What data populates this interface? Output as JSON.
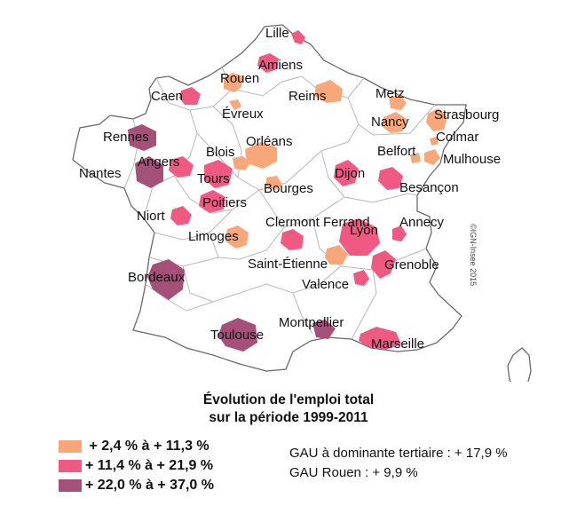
{
  "map": {
    "credit": "©IGN-Insee 2015",
    "cities": [
      {
        "name": "Lille",
        "class": 2
      },
      {
        "name": "Amiens",
        "class": 2
      },
      {
        "name": "Rouen",
        "class": 1
      },
      {
        "name": "Caen",
        "class": 2
      },
      {
        "name": "Évreux",
        "class": 1
      },
      {
        "name": "Reims",
        "class": 1
      },
      {
        "name": "Metz",
        "class": 1
      },
      {
        "name": "Nancy",
        "class": 1
      },
      {
        "name": "Strasbourg",
        "class": 1
      },
      {
        "name": "Colmar",
        "class": 1
      },
      {
        "name": "Mulhouse",
        "class": 1
      },
      {
        "name": "Belfort",
        "class": 1
      },
      {
        "name": "Rennes",
        "class": 3
      },
      {
        "name": "Nantes",
        "class": 3
      },
      {
        "name": "Angers",
        "class": 2
      },
      {
        "name": "Blois",
        "class": 1
      },
      {
        "name": "Orléans",
        "class": 1
      },
      {
        "name": "Tours",
        "class": 2
      },
      {
        "name": "Dijon",
        "class": 2
      },
      {
        "name": "Besançon",
        "class": 2
      },
      {
        "name": "Bourges",
        "class": 1
      },
      {
        "name": "Poitiers",
        "class": 2
      },
      {
        "name": "Niort",
        "class": 2
      },
      {
        "name": "Limoges",
        "class": 1
      },
      {
        "name": "Clermont Ferrand",
        "class": 2
      },
      {
        "name": "Lyon",
        "class": 2
      },
      {
        "name": "Annecy",
        "class": 2
      },
      {
        "name": "Saint-Étienne",
        "class": 1
      },
      {
        "name": "Grenoble",
        "class": 2
      },
      {
        "name": "Valence",
        "class": 2
      },
      {
        "name": "Bordeaux",
        "class": 3
      },
      {
        "name": "Toulouse",
        "class": 3
      },
      {
        "name": "Montpellier",
        "class": 3
      },
      {
        "name": "Marseille",
        "class": 2
      }
    ]
  },
  "title": {
    "line1": "Évolution de l'emploi total",
    "line2": "sur la période 1999-2011"
  },
  "legend": [
    {
      "label": " + 2,4 % à + 11,3 %",
      "color": "#f7a77a"
    },
    {
      "label": "+ 11,4 % à + 21,9 %",
      "color": "#f05a82"
    },
    {
      "label": "+ 22,0 % à + 37,0 %",
      "color": "#a55079"
    }
  ],
  "notes": {
    "tertiary": "GAU à dominante tertiaire : + 17,9 %",
    "rouen": "GAU Rouen : + 9,9 %"
  }
}
